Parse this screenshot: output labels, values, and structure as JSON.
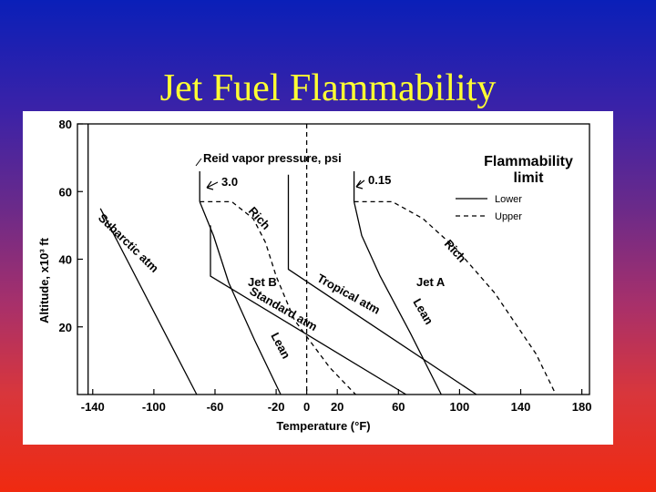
{
  "slide": {
    "title": "Jet Fuel Flammability"
  },
  "chart_data": {
    "type": "line",
    "xlabel": "Temperature (°F)",
    "ylabel": "Altitude, x10³ ft",
    "xlim": [
      -150,
      185
    ],
    "ylim": [
      0,
      80
    ],
    "x_ticks": [
      -140,
      -100,
      -60,
      -20,
      0,
      20,
      60,
      100,
      140,
      180
    ],
    "y_ticks": [
      20,
      40,
      60,
      80
    ],
    "legend": {
      "title_line1": "Flammability",
      "title_line2": "limit",
      "entries": [
        {
          "label": "Lower",
          "style": "solid"
        },
        {
          "label": "Upper",
          "style": "dashed"
        }
      ],
      "placement": "top-right"
    },
    "annotations": {
      "rvp_header": "Reid vapor pressure, psi",
      "rvp_jetb": "3.0",
      "rvp_jeta": "0.15",
      "subarctic": "Subarctic atm",
      "standard": "Standard atm",
      "tropical": "Tropical atm",
      "jet_b": "Jet B",
      "jet_a": "Jet A",
      "rich_b": "Rich",
      "rich_a": "Rich",
      "lean_b": "Lean",
      "lean_a": "Lean"
    },
    "series": [
      {
        "style": "solid",
        "points": [
          [
            -135,
            55
          ],
          [
            -72,
            0
          ]
        ]
      },
      {
        "style": "solid",
        "points": [
          [
            -63,
            50
          ],
          [
            -63,
            35
          ],
          [
            65,
            0
          ]
        ]
      },
      {
        "style": "solid",
        "points": [
          [
            -12,
            65
          ],
          [
            -12,
            37
          ],
          [
            111,
            0
          ]
        ]
      },
      {
        "style": "solid",
        "points": [
          [
            -143,
            0
          ],
          [
            -143,
            80
          ]
        ]
      },
      {
        "style": "solid",
        "points": [
          [
            -70,
            57
          ],
          [
            -61,
            47
          ],
          [
            -51,
            33
          ],
          [
            -34,
            16
          ],
          [
            -17,
            0
          ]
        ]
      },
      {
        "style": "solid",
        "points": [
          [
            31,
            57
          ],
          [
            36,
            47
          ],
          [
            48,
            35
          ],
          [
            68,
            18
          ],
          [
            88,
            0
          ]
        ]
      },
      {
        "style": "solid",
        "points": [
          [
            -70,
            66
          ],
          [
            -70,
            57
          ]
        ]
      },
      {
        "style": "solid",
        "points": [
          [
            31,
            66
          ],
          [
            31,
            57
          ]
        ]
      },
      {
        "style": "dashed",
        "points": [
          [
            -70,
            57
          ],
          [
            -49,
            57
          ],
          [
            -35,
            52
          ],
          [
            -27,
            45
          ],
          [
            -20,
            35
          ],
          [
            -8,
            22
          ],
          [
            15,
            8
          ],
          [
            32,
            0
          ]
        ]
      },
      {
        "style": "dashed",
        "points": [
          [
            31,
            57
          ],
          [
            56,
            57
          ],
          [
            76,
            52
          ],
          [
            98,
            43
          ],
          [
            123,
            30
          ],
          [
            150,
            12
          ],
          [
            163,
            0
          ]
        ]
      },
      {
        "style": "dashed",
        "points": [
          [
            0,
            80
          ],
          [
            0,
            0
          ]
        ]
      }
    ]
  }
}
